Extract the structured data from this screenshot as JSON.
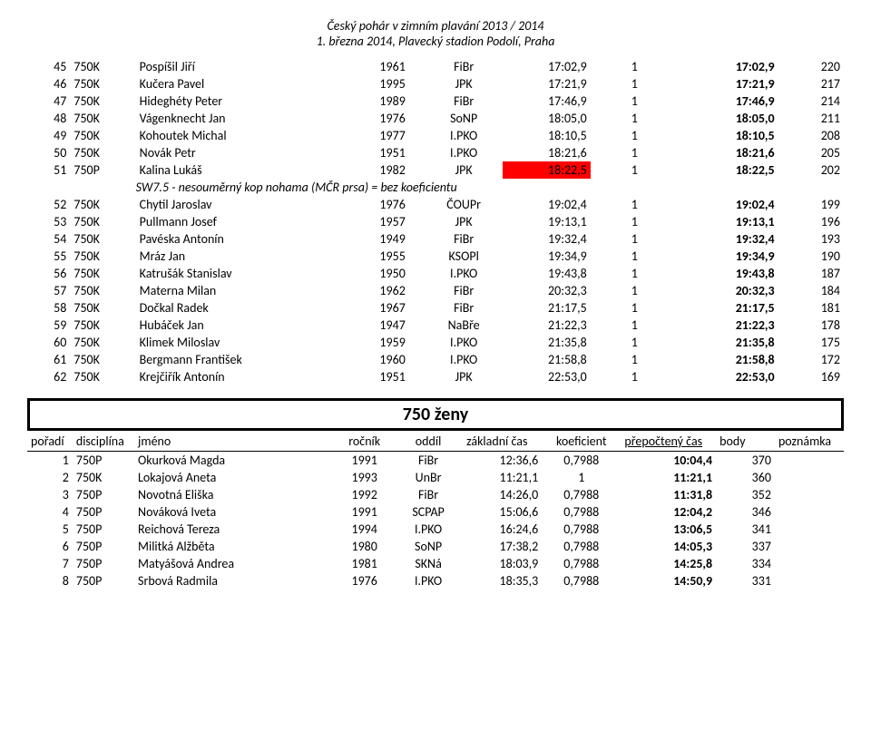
{
  "header": {
    "line1": "Český pohár v zimním plavání 2013 / 2014",
    "line2": "1. března 2014, Plavecký stadion Podolí, Praha"
  },
  "table1": {
    "rows": [
      {
        "rank": "45",
        "disc": "750K",
        "name": "Pospíšil Jiří",
        "year": "1961",
        "club": "FiBr",
        "time": "17:02,9",
        "coef": "1",
        "calc": "17:02,9",
        "body": "220"
      },
      {
        "rank": "46",
        "disc": "750K",
        "name": "Kučera Pavel",
        "year": "1995",
        "club": "JPK",
        "time": "17:21,9",
        "coef": "1",
        "calc": "17:21,9",
        "body": "217"
      },
      {
        "rank": "47",
        "disc": "750K",
        "name": "Hideghéty Peter",
        "year": "1989",
        "club": "FiBr",
        "time": "17:46,9",
        "coef": "1",
        "calc": "17:46,9",
        "body": "214"
      },
      {
        "rank": "48",
        "disc": "750K",
        "name": "Vágenknecht Jan",
        "year": "1976",
        "club": "SoNP",
        "time": "18:05,0",
        "coef": "1",
        "calc": "18:05,0",
        "body": "211"
      },
      {
        "rank": "49",
        "disc": "750K",
        "name": "Kohoutek Michal",
        "year": "1977",
        "club": "I.PKO",
        "time": "18:10,5",
        "coef": "1",
        "calc": "18:10,5",
        "body": "208"
      },
      {
        "rank": "50",
        "disc": "750K",
        "name": "Novák Petr",
        "year": "1951",
        "club": "I.PKO",
        "time": "18:21,6",
        "coef": "1",
        "calc": "18:21,6",
        "body": "205"
      },
      {
        "rank": "51",
        "disc": "750P",
        "name": "Kalina Lukáš",
        "year": "1982",
        "club": "JPK",
        "time": "18:22,5",
        "coef": "1",
        "calc": "18:22,5",
        "body": "202",
        "hl": true
      }
    ],
    "note": "SW7.5 - nesouměrný kop nohama (MČR prsa) = bez koeficientu",
    "rows2": [
      {
        "rank": "52",
        "disc": "750K",
        "name": "Chytil Jaroslav",
        "year": "1976",
        "club": "ČOUPr",
        "time": "19:02,4",
        "coef": "1",
        "calc": "19:02,4",
        "body": "199"
      },
      {
        "rank": "53",
        "disc": "750K",
        "name": "Pullmann Josef",
        "year": "1957",
        "club": "JPK",
        "time": "19:13,1",
        "coef": "1",
        "calc": "19:13,1",
        "body": "196"
      },
      {
        "rank": "54",
        "disc": "750K",
        "name": "Pavéska Antonín",
        "year": "1949",
        "club": "FiBr",
        "time": "19:32,4",
        "coef": "1",
        "calc": "19:32,4",
        "body": "193"
      },
      {
        "rank": "55",
        "disc": "750K",
        "name": "Mráz Jan",
        "year": "1955",
        "club": "KSOPl",
        "time": "19:34,9",
        "coef": "1",
        "calc": "19:34,9",
        "body": "190"
      },
      {
        "rank": "56",
        "disc": "750K",
        "name": "Katrušák Stanislav",
        "year": "1950",
        "club": "I.PKO",
        "time": "19:43,8",
        "coef": "1",
        "calc": "19:43,8",
        "body": "187"
      },
      {
        "rank": "57",
        "disc": "750K",
        "name": "Materna Milan",
        "year": "1962",
        "club": "FiBr",
        "time": "20:32,3",
        "coef": "1",
        "calc": "20:32,3",
        "body": "184"
      },
      {
        "rank": "58",
        "disc": "750K",
        "name": "Dočkal Radek",
        "year": "1967",
        "club": "FiBr",
        "time": "21:17,5",
        "coef": "1",
        "calc": "21:17,5",
        "body": "181"
      },
      {
        "rank": "59",
        "disc": "750K",
        "name": "Hubáček Jan",
        "year": "1947",
        "club": "NaBře",
        "time": "21:22,3",
        "coef": "1",
        "calc": "21:22,3",
        "body": "178"
      },
      {
        "rank": "60",
        "disc": "750K",
        "name": "Klimek Miloslav",
        "year": "1959",
        "club": "I.PKO",
        "time": "21:35,8",
        "coef": "1",
        "calc": "21:35,8",
        "body": "175"
      },
      {
        "rank": "61",
        "disc": "750K",
        "name": "Bergmann František",
        "year": "1960",
        "club": "I.PKO",
        "time": "21:58,8",
        "coef": "1",
        "calc": "21:58,8",
        "body": "172"
      },
      {
        "rank": "62",
        "disc": "750K",
        "name": "Krejčiřík Antonín",
        "year": "1951",
        "club": "JPK",
        "time": "22:53,0",
        "coef": "1",
        "calc": "22:53,0",
        "body": "169"
      }
    ]
  },
  "section2": {
    "title": "750 ženy",
    "headers": {
      "rank": "pořadí",
      "disc": "disciplína",
      "name": "jméno",
      "year": "ročník",
      "club": "oddíl",
      "time": "základní čas",
      "coef": "koeficient",
      "calc": "přepočtený čas",
      "body": "body",
      "note": "poznámka"
    },
    "rows": [
      {
        "rank": "1",
        "disc": "750P",
        "name": "Okurková Magda",
        "year": "1991",
        "club": "FiBr",
        "time": "12:36,6",
        "coef": "0,7988",
        "calc": "10:04,4",
        "body": "370"
      },
      {
        "rank": "2",
        "disc": "750K",
        "name": "Lokajová Aneta",
        "year": "1993",
        "club": "UnBr",
        "time": "11:21,1",
        "coef": "1",
        "calc": "11:21,1",
        "body": "360"
      },
      {
        "rank": "3",
        "disc": "750P",
        "name": "Novotná Eliška",
        "year": "1992",
        "club": "FiBr",
        "time": "14:26,0",
        "coef": "0,7988",
        "calc": "11:31,8",
        "body": "352"
      },
      {
        "rank": "4",
        "disc": "750P",
        "name": "Nováková Iveta",
        "year": "1991",
        "club": "SCPAP",
        "time": "15:06,6",
        "coef": "0,7988",
        "calc": "12:04,2",
        "body": "346"
      },
      {
        "rank": "5",
        "disc": "750P",
        "name": "Reichová Tereza",
        "year": "1994",
        "club": "I.PKO",
        "time": "16:24,6",
        "coef": "0,7988",
        "calc": "13:06,5",
        "body": "341"
      },
      {
        "rank": "6",
        "disc": "750P",
        "name": "Militká Alžběta",
        "year": "1980",
        "club": "SoNP",
        "time": "17:38,2",
        "coef": "0,7988",
        "calc": "14:05,3",
        "body": "337"
      },
      {
        "rank": "7",
        "disc": "750P",
        "name": "Matyášová Andrea",
        "year": "1981",
        "club": "SKNá",
        "time": "18:03,9",
        "coef": "0,7988",
        "calc": "14:25,8",
        "body": "334"
      },
      {
        "rank": "8",
        "disc": "750P",
        "name": "Srbová Radmila",
        "year": "1976",
        "club": "I.PKO",
        "time": "18:35,3",
        "coef": "0,7988",
        "calc": "14:50,9",
        "body": "331"
      }
    ]
  }
}
